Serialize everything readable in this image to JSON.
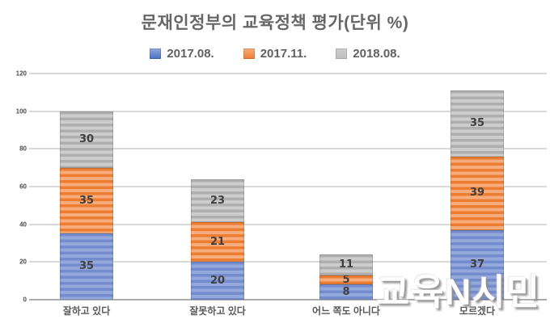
{
  "title": "문재인정부의 교육정책 평가(단위 %)",
  "watermark": "교육N시민",
  "chart_data": {
    "type": "bar",
    "stacked": true,
    "title": "문재인정부의 교육정책 평가(단위 %)",
    "categories": [
      "잘하고 있다",
      "잘못하고 있다",
      "어느 쪽도 아니다",
      "모르겠다"
    ],
    "series": [
      {
        "name": "2017.08.",
        "color": "#4472C4",
        "stripe_dark": "#748CCD",
        "stripe_light": "#93A9DC",
        "values": [
          35,
          20,
          8,
          37
        ]
      },
      {
        "name": "2017.11.",
        "color": "#ED7D31",
        "stripe_dark": "#ED7D31",
        "stripe_light": "#F6AC7D",
        "values": [
          35,
          21,
          5,
          39
        ]
      },
      {
        "name": "2018.08.",
        "color": "#BFBFBF",
        "stripe_dark": "#AFAFAF",
        "stripe_light": "#CDCDCD",
        "values": [
          30,
          23,
          11,
          35
        ]
      }
    ],
    "totals": [
      100,
      64,
      24,
      111
    ],
    "ylim": [
      0,
      120
    ],
    "yticks": [
      0,
      20,
      40,
      60,
      80,
      100,
      120
    ],
    "grid": true,
    "legend_position": "top",
    "value_labels": true
  }
}
